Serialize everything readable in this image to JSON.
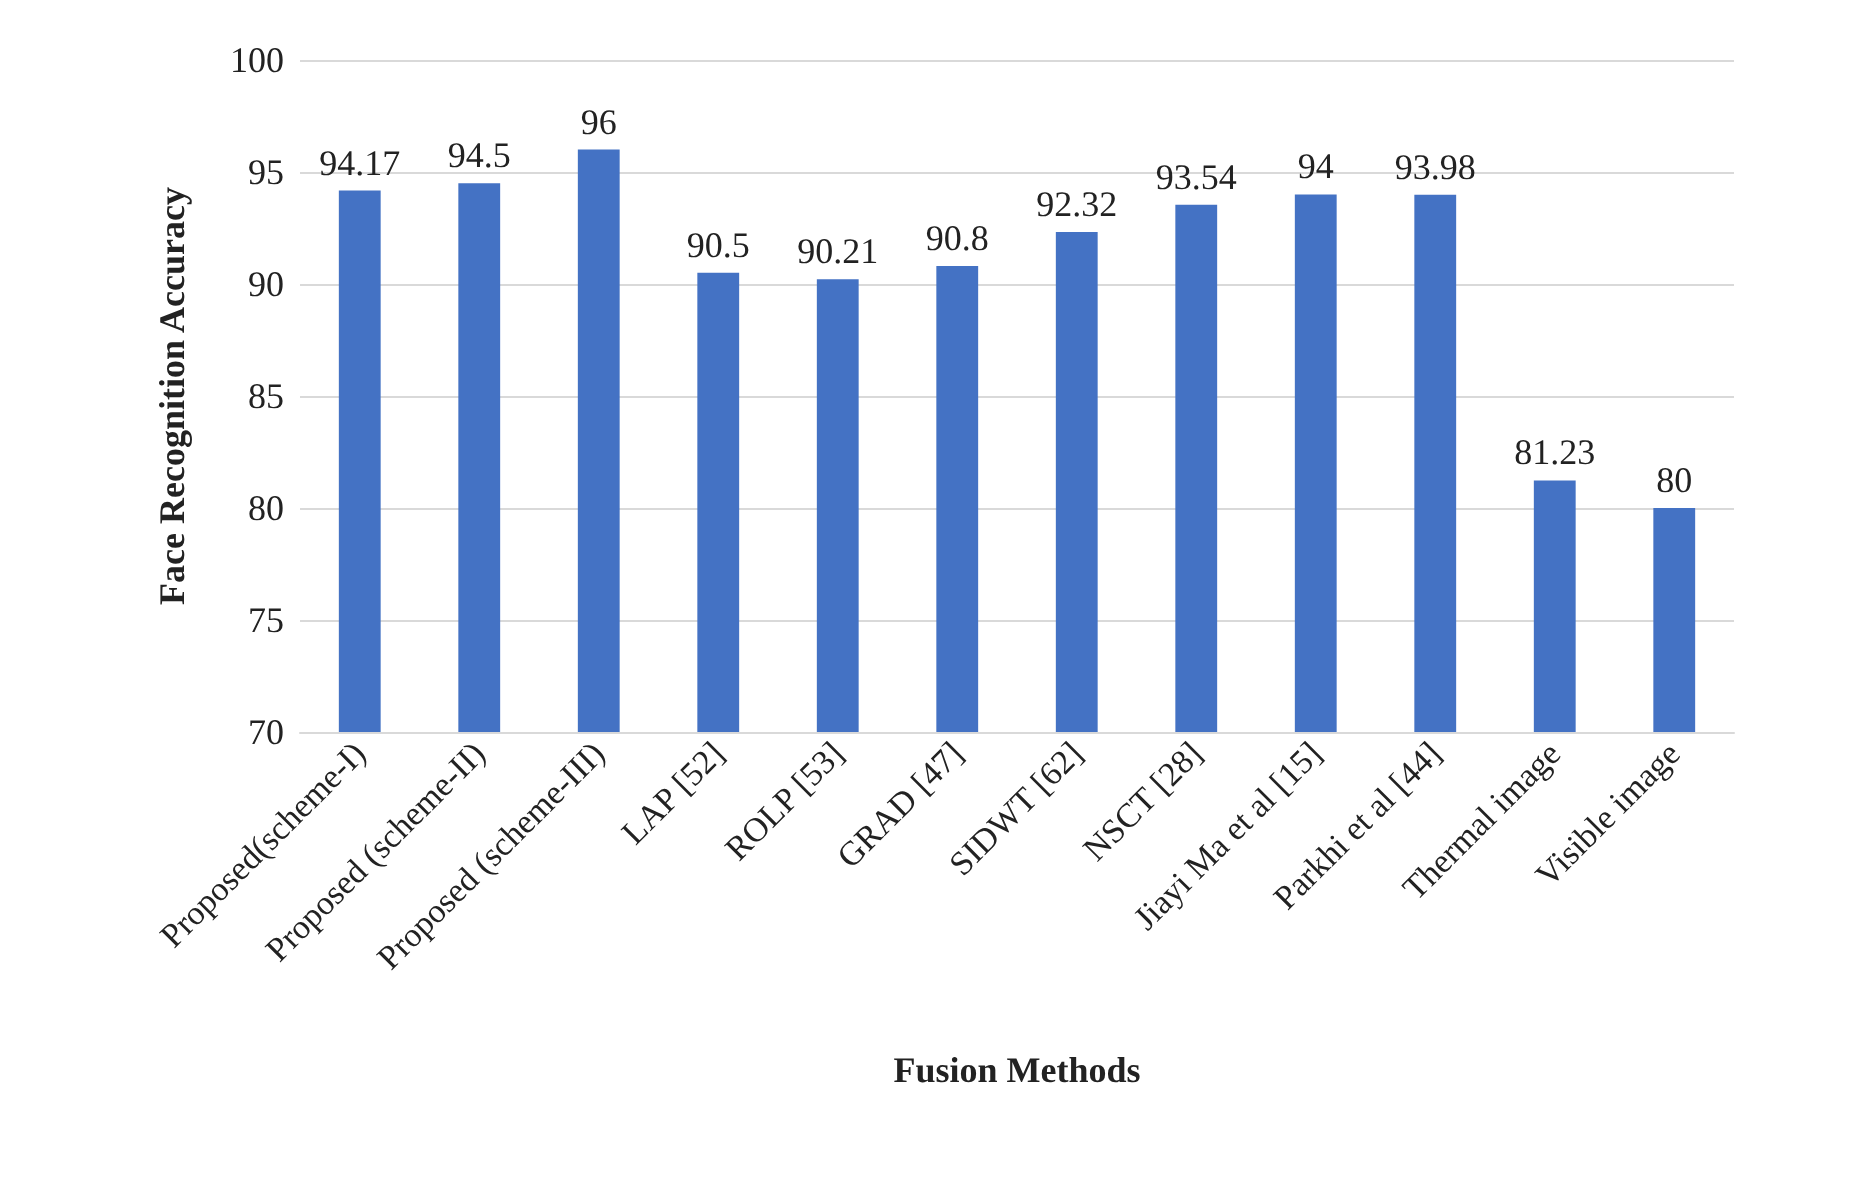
{
  "chart_data": {
    "type": "bar",
    "xlabel": "Fusion Methods",
    "ylabel": "Face Recognition Accuracy",
    "categories": [
      "Proposed(scheme-I)",
      "Proposed (scheme-II)",
      "Proposed (scheme-III)",
      "LAP [52]",
      "ROLP [53]",
      "GRAD [47]",
      "SIDWT [62]",
      "NSCT [28]",
      "Jiayi Ma et al [15]",
      "Parkhi et al [44]",
      "Thermal image",
      "Visible image"
    ],
    "values": [
      94.17,
      94.5,
      96,
      90.5,
      90.21,
      90.8,
      92.32,
      93.54,
      94,
      93.98,
      81.23,
      80
    ],
    "color": "#4472c4",
    "ylim": [
      70,
      100
    ],
    "yticks": [
      70,
      75,
      80,
      85,
      90,
      95,
      100
    ],
    "grid": "y",
    "data_labels": true
  }
}
